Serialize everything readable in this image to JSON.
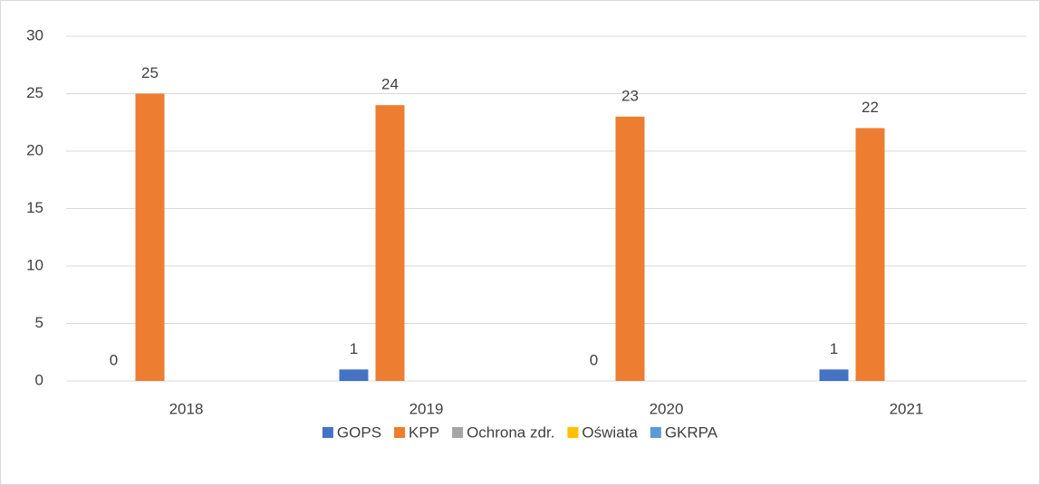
{
  "chart_data": {
    "type": "bar",
    "categories": [
      "2018",
      "2019",
      "2020",
      "2021"
    ],
    "series": [
      {
        "name": "GOPS",
        "color": "#4472c4",
        "values": [
          0,
          1,
          0,
          1
        ],
        "show_labels": true
      },
      {
        "name": "KPP",
        "color": "#ed7d31",
        "values": [
          25,
          24,
          23,
          22
        ],
        "show_labels": true
      },
      {
        "name": "Ochrona zdr.",
        "color": "#a5a5a5",
        "values": [
          0,
          0,
          0,
          0
        ],
        "show_labels": false
      },
      {
        "name": "Oświata",
        "color": "#ffc000",
        "values": [
          0,
          0,
          0,
          0
        ],
        "show_labels": false
      },
      {
        "name": "GKRPA",
        "color": "#5b9bd5",
        "values": [
          0,
          0,
          0,
          0
        ],
        "show_labels": false
      }
    ],
    "ylim": [
      0,
      30
    ],
    "yticks": [
      0,
      5,
      10,
      15,
      20,
      25,
      30
    ],
    "grid": true,
    "legend": "bottom"
  }
}
